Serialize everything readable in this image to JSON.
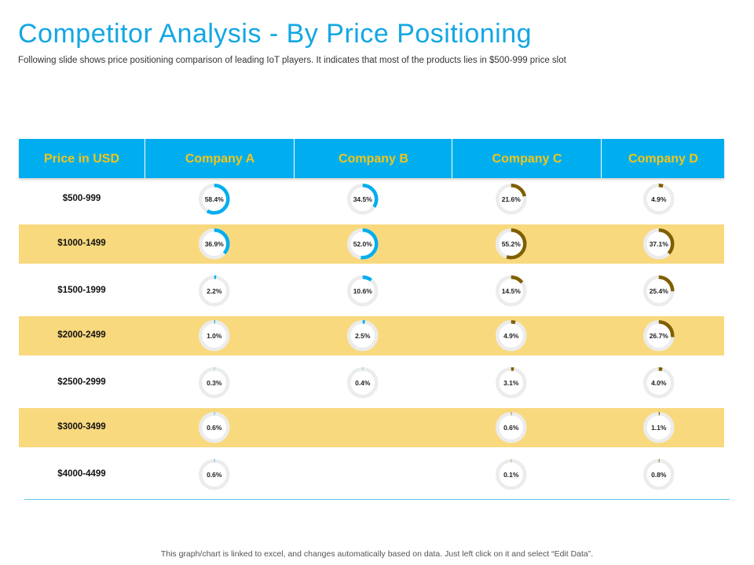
{
  "title": "Competitor Analysis - By Price Positioning",
  "subtitle": "Following slide shows price positioning  comparison of leading IoT players. It indicates  that most of the products lies in $500-999 price slot",
  "footer": "This graph/chart is linked to excel,  and changes automatically based on data.  Just left click on it and select “Edit Data”.",
  "colors": {
    "header_bg": "#00aeef",
    "header_text": "#f5c518",
    "alt_row": "#f9d97e",
    "blue_arc": "#00aeef",
    "brown_arc": "#7f5f00",
    "track": "#ececec"
  },
  "chart_data": {
    "type": "table",
    "row_header": "Price in USD",
    "columns": [
      "Company A",
      "Company B",
      "Company C",
      "Company D"
    ],
    "rows": [
      {
        "label": "$500-999",
        "values": [
          58.4,
          34.5,
          21.6,
          4.9
        ]
      },
      {
        "label": "$1000-1499",
        "values": [
          36.9,
          52.0,
          55.2,
          37.1
        ]
      },
      {
        "label": "$1500-1999",
        "values": [
          2.2,
          10.6,
          14.5,
          25.4
        ]
      },
      {
        "label": "$2000-2499",
        "values": [
          1.0,
          2.5,
          4.9,
          26.7
        ]
      },
      {
        "label": "$2500-2999",
        "values": [
          0.3,
          0.4,
          3.1,
          4.0
        ]
      },
      {
        "label": "$3000-3499",
        "values": [
          0.6,
          null,
          0.6,
          1.1
        ]
      },
      {
        "label": "$4000-4499",
        "values": [
          0.6,
          null,
          0.1,
          0.8
        ]
      }
    ],
    "value_labels": [
      [
        "58.4%",
        "34.5%",
        "21.6%",
        "4.9%"
      ],
      [
        "36.9%",
        "52.0%",
        "55.2%",
        "37.1%"
      ],
      [
        "2.2%",
        "10.6%",
        "14.5%",
        "25.4%"
      ],
      [
        "1.0%",
        "2.5%",
        "4.9%",
        "26.7%"
      ],
      [
        "0.3%",
        "0.4%",
        "3.1%",
        "4.0%"
      ],
      [
        "0.6%",
        "",
        "0.6%",
        "1.1%"
      ],
      [
        "0.6%",
        "",
        "0.1%",
        "0.8%"
      ]
    ],
    "series_colors": [
      "#00aeef",
      "#00aeef",
      "#7f5f00",
      "#7f5f00"
    ]
  }
}
